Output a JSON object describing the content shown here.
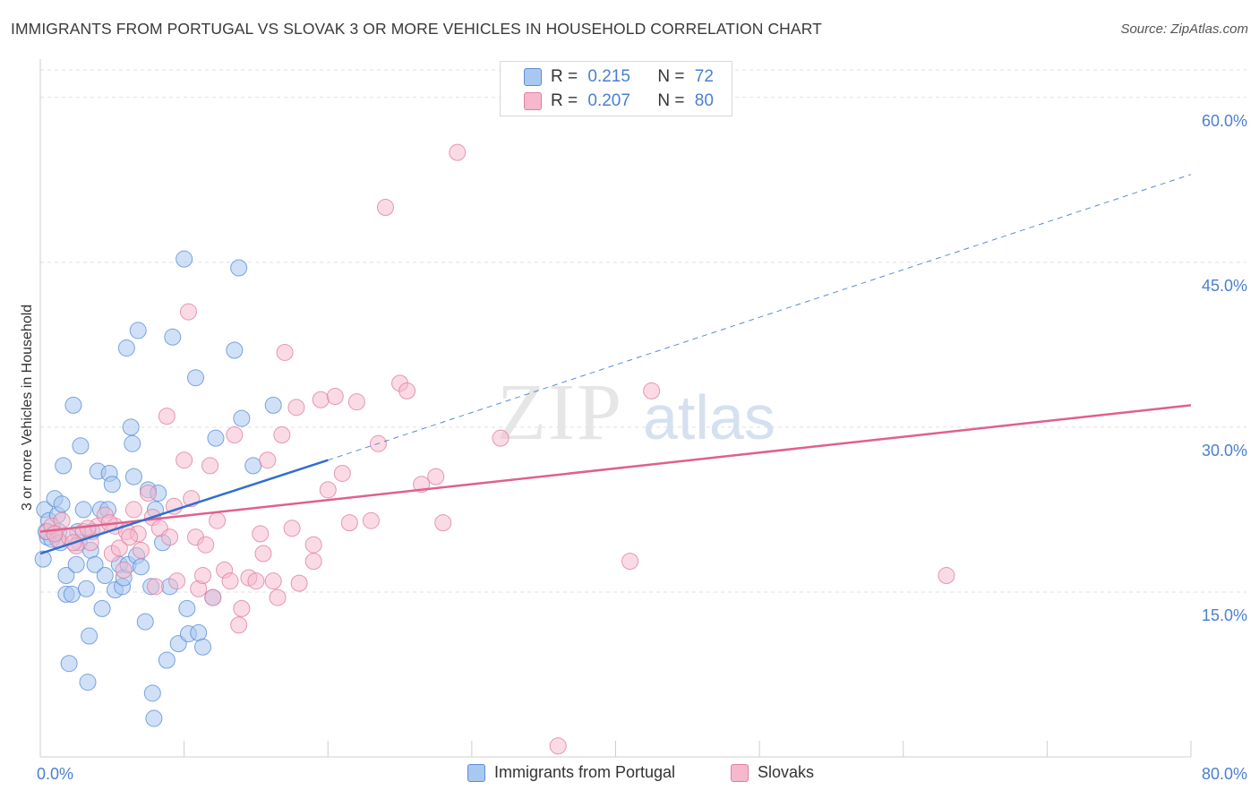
{
  "title": "IMMIGRANTS FROM PORTUGAL VS SLOVAK 3 OR MORE VEHICLES IN HOUSEHOLD CORRELATION CHART",
  "source": "Source: ZipAtlas.com",
  "watermark": {
    "zip": "ZIP",
    "atlas": "atlas"
  },
  "legend_top": {
    "rows": [
      {
        "r_label": "R =",
        "r_value": "0.215",
        "n_label": "N =",
        "n_value": "72"
      },
      {
        "r_label": "R =",
        "r_value": "0.207",
        "n_label": "N =",
        "n_value": "80"
      }
    ]
  },
  "colors": {
    "blue_fill": "#a9c8f0",
    "blue_stroke": "#5b8fd8",
    "blue_line": "#2f6fd0",
    "pink_fill": "#f6b8cc",
    "pink_stroke": "#e07fa0",
    "pink_line": "#e0608c",
    "tick": "#4a7fd0",
    "grid": "#e0e0e0"
  },
  "chart_data": {
    "type": "scatter",
    "title": "IMMIGRANTS FROM PORTUGAL VS SLOVAK 3 OR MORE VEHICLES IN HOUSEHOLD CORRELATION CHART",
    "xlabel": "",
    "ylabel": "3 or more Vehicles in Household",
    "xlim": [
      0,
      80
    ],
    "ylim": [
      0,
      63
    ],
    "x_tick_labels": [
      "0.0%",
      "80.0%"
    ],
    "y_ticks": [
      15,
      30,
      45,
      60
    ],
    "y_tick_labels": [
      "15.0%",
      "30.0%",
      "45.0%",
      "60.0%"
    ],
    "grid": true,
    "legend_position": "bottom",
    "series": [
      {
        "name": "Immigrants from Portugal",
        "r": 0.215,
        "n": 72,
        "trend": {
          "x": [
            0,
            20
          ],
          "y": [
            18.5,
            27.0
          ]
        },
        "trend_extension": {
          "x": [
            20,
            80
          ],
          "y": [
            27.0,
            53.0
          ]
        },
        "points": [
          [
            0.2,
            18.0
          ],
          [
            0.3,
            22.5
          ],
          [
            0.5,
            20.0
          ],
          [
            0.6,
            21.5
          ],
          [
            0.8,
            19.8
          ],
          [
            1.0,
            23.5
          ],
          [
            1.2,
            22.0
          ],
          [
            1.3,
            20.5
          ],
          [
            1.5,
            23.0
          ],
          [
            1.6,
            26.5
          ],
          [
            1.8,
            16.5
          ],
          [
            1.8,
            14.8
          ],
          [
            2.0,
            8.5
          ],
          [
            2.2,
            14.8
          ],
          [
            2.3,
            32.0
          ],
          [
            2.5,
            17.5
          ],
          [
            2.7,
            19.5
          ],
          [
            2.8,
            28.3
          ],
          [
            3.0,
            22.5
          ],
          [
            3.2,
            15.3
          ],
          [
            3.3,
            6.8
          ],
          [
            3.4,
            11.0
          ],
          [
            3.5,
            18.8
          ],
          [
            3.6,
            20.5
          ],
          [
            3.8,
            17.5
          ],
          [
            4.0,
            26.0
          ],
          [
            4.2,
            22.5
          ],
          [
            4.3,
            13.5
          ],
          [
            4.5,
            16.5
          ],
          [
            4.7,
            22.5
          ],
          [
            4.8,
            25.8
          ],
          [
            5.0,
            24.8
          ],
          [
            5.2,
            15.2
          ],
          [
            5.5,
            17.5
          ],
          [
            5.7,
            15.5
          ],
          [
            5.8,
            16.3
          ],
          [
            6.0,
            37.2
          ],
          [
            6.1,
            17.5
          ],
          [
            6.3,
            30.0
          ],
          [
            6.4,
            28.5
          ],
          [
            6.5,
            25.5
          ],
          [
            6.7,
            18.3
          ],
          [
            6.8,
            38.8
          ],
          [
            7.0,
            17.3
          ],
          [
            7.3,
            12.3
          ],
          [
            7.5,
            24.3
          ],
          [
            7.7,
            15.5
          ],
          [
            7.8,
            5.8
          ],
          [
            7.9,
            3.5
          ],
          [
            8.0,
            22.5
          ],
          [
            8.2,
            24.0
          ],
          [
            8.5,
            19.5
          ],
          [
            8.8,
            8.8
          ],
          [
            9.0,
            15.5
          ],
          [
            9.2,
            38.2
          ],
          [
            9.6,
            10.3
          ],
          [
            10.0,
            45.3
          ],
          [
            10.2,
            13.5
          ],
          [
            10.3,
            11.2
          ],
          [
            10.8,
            34.5
          ],
          [
            11.0,
            11.3
          ],
          [
            11.3,
            10.0
          ],
          [
            12.0,
            14.5
          ],
          [
            12.2,
            29.0
          ],
          [
            13.5,
            37.0
          ],
          [
            13.8,
            44.5
          ],
          [
            14.0,
            30.8
          ],
          [
            14.8,
            26.5
          ],
          [
            16.2,
            32.0
          ],
          [
            0.4,
            20.5
          ],
          [
            1.4,
            19.5
          ],
          [
            2.6,
            20.5
          ]
        ]
      },
      {
        "name": "Slovaks",
        "r": 0.207,
        "n": 80,
        "trend": {
          "x": [
            0,
            80
          ],
          "y": [
            20.5,
            32.0
          ]
        },
        "points": [
          [
            0.5,
            20.5
          ],
          [
            0.8,
            21.0
          ],
          [
            1.2,
            19.8
          ],
          [
            1.5,
            21.5
          ],
          [
            2.0,
            20.0
          ],
          [
            2.5,
            19.2
          ],
          [
            3.0,
            20.5
          ],
          [
            3.5,
            19.5
          ],
          [
            4.0,
            21.0
          ],
          [
            4.5,
            22.0
          ],
          [
            5.0,
            18.5
          ],
          [
            5.2,
            21.0
          ],
          [
            5.8,
            17.0
          ],
          [
            6.0,
            20.5
          ],
          [
            6.5,
            22.5
          ],
          [
            6.8,
            20.3
          ],
          [
            7.0,
            18.8
          ],
          [
            7.5,
            24.0
          ],
          [
            7.8,
            21.8
          ],
          [
            8.0,
            15.5
          ],
          [
            8.3,
            20.8
          ],
          [
            8.8,
            31.0
          ],
          [
            9.0,
            20.0
          ],
          [
            9.5,
            16.0
          ],
          [
            10.0,
            27.0
          ],
          [
            10.3,
            40.5
          ],
          [
            10.5,
            23.5
          ],
          [
            10.8,
            20.0
          ],
          [
            11.0,
            15.3
          ],
          [
            11.3,
            16.5
          ],
          [
            11.5,
            19.3
          ],
          [
            11.8,
            26.5
          ],
          [
            12.0,
            14.5
          ],
          [
            12.3,
            21.5
          ],
          [
            12.8,
            17.0
          ],
          [
            13.2,
            16.0
          ],
          [
            13.5,
            29.3
          ],
          [
            13.8,
            12.0
          ],
          [
            14.0,
            13.5
          ],
          [
            14.5,
            16.3
          ],
          [
            15.0,
            16.0
          ],
          [
            15.3,
            20.3
          ],
          [
            15.5,
            18.5
          ],
          [
            15.8,
            27.0
          ],
          [
            16.2,
            16.0
          ],
          [
            16.5,
            14.5
          ],
          [
            16.8,
            29.3
          ],
          [
            17.0,
            36.8
          ],
          [
            17.5,
            20.8
          ],
          [
            17.8,
            31.8
          ],
          [
            18.0,
            15.8
          ],
          [
            19.0,
            19.3
          ],
          [
            19.0,
            17.8
          ],
          [
            19.5,
            32.5
          ],
          [
            20.0,
            24.3
          ],
          [
            20.5,
            32.8
          ],
          [
            21.0,
            25.8
          ],
          [
            21.5,
            21.3
          ],
          [
            22.0,
            32.3
          ],
          [
            23.0,
            21.5
          ],
          [
            23.5,
            28.5
          ],
          [
            24.0,
            50.0
          ],
          [
            25.0,
            34.0
          ],
          [
            25.5,
            33.3
          ],
          [
            26.5,
            24.8
          ],
          [
            27.5,
            25.5
          ],
          [
            28.0,
            21.3
          ],
          [
            29.0,
            55.0
          ],
          [
            32.0,
            29.0
          ],
          [
            36.0,
            1.0
          ],
          [
            41.0,
            17.8
          ],
          [
            42.5,
            33.3
          ],
          [
            63.0,
            16.5
          ],
          [
            1.0,
            20.3
          ],
          [
            2.3,
            19.5
          ],
          [
            3.3,
            20.8
          ],
          [
            4.8,
            21.3
          ],
          [
            5.5,
            19.0
          ],
          [
            6.2,
            20.0
          ],
          [
            9.3,
            22.8
          ]
        ]
      }
    ]
  }
}
